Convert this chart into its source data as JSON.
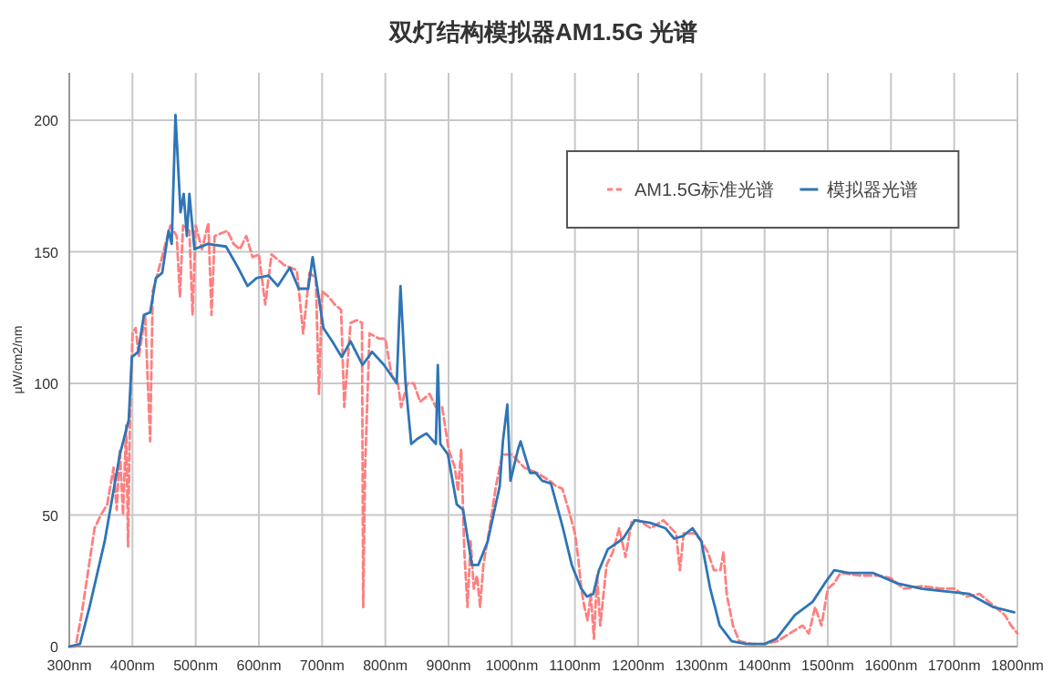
{
  "chart_data": {
    "type": "line",
    "title": "双灯结构模拟器AM1.5G 光谱",
    "ylabel": "μW/cm2/nm",
    "xlim": [
      300,
      1800
    ],
    "ylim": [
      0,
      218
    ],
    "xticks": [
      {
        "value": 300,
        "label": "300nm"
      },
      {
        "value": 400,
        "label": "400nm"
      },
      {
        "value": 500,
        "label": "500nm"
      },
      {
        "value": 600,
        "label": "600nm"
      },
      {
        "value": 700,
        "label": "700nm"
      },
      {
        "value": 800,
        "label": "800nm"
      },
      {
        "value": 900,
        "label": "900nm"
      },
      {
        "value": 1000,
        "label": "1000nm"
      },
      {
        "value": 1100,
        "label": "1100nm"
      },
      {
        "value": 1200,
        "label": "1200nm"
      },
      {
        "value": 1300,
        "label": "1300nm"
      },
      {
        "value": 1400,
        "label": "1400nm"
      },
      {
        "value": 1500,
        "label": "1500nm"
      },
      {
        "value": 1600,
        "label": "1600nm"
      },
      {
        "value": 1700,
        "label": "1700nm"
      },
      {
        "value": 1800,
        "label": "1800nm"
      }
    ],
    "yticks": [
      0,
      50,
      100,
      150,
      200
    ],
    "grid": true,
    "legend": "top right",
    "series": [
      {
        "name": "AM1.5G标准光谱",
        "color": "#ff7f7f",
        "line_style": "dashed",
        "x": [
          300,
          310,
          320,
          330,
          340,
          350,
          360,
          370,
          375,
          380,
          385,
          390,
          393,
          396,
          400,
          405,
          410,
          420,
          428,
          432,
          440,
          450,
          460,
          470,
          475,
          480,
          490,
          495,
          500,
          510,
          520,
          525,
          530,
          540,
          550,
          560,
          570,
          580,
          590,
          600,
          610,
          620,
          640,
          660,
          670,
          680,
          690,
          695,
          700,
          710,
          720,
          730,
          735,
          745,
          755,
          763,
          765,
          768,
          775,
          790,
          800,
          810,
          820,
          825,
          835,
          845,
          855,
          870,
          880,
          890,
          900,
          910,
          915,
          920,
          925,
          930,
          935,
          940,
          945,
          950,
          955,
          965,
          975,
          985,
          1000,
          1020,
          1040,
          1060,
          1070,
          1080,
          1090,
          1100,
          1105,
          1110,
          1115,
          1120,
          1125,
          1130,
          1135,
          1140,
          1150,
          1160,
          1170,
          1180,
          1190,
          1200,
          1220,
          1240,
          1260,
          1266,
          1272,
          1290,
          1300,
          1310,
          1320,
          1330,
          1335,
          1340,
          1350,
          1360,
          1380,
          1400,
          1420,
          1440,
          1460,
          1470,
          1480,
          1490,
          1500,
          1510,
          1520,
          1550,
          1580,
          1600,
          1620,
          1650,
          1680,
          1700,
          1720,
          1740,
          1760,
          1780,
          1790,
          1800
        ],
        "values": [
          0,
          0,
          13,
          29,
          45,
          50,
          54,
          68,
          52,
          75,
          50,
          84,
          38,
          86,
          119,
          121,
          110,
          126,
          78,
          135,
          142,
          151,
          160,
          156,
          133,
          160,
          158,
          126,
          160,
          151,
          161,
          126,
          156,
          157,
          158,
          153,
          151,
          156,
          148,
          149,
          130,
          149,
          145,
          143,
          119,
          142,
          140,
          96,
          135,
          133,
          130,
          128,
          91,
          123,
          124,
          123,
          15,
          68,
          119,
          117,
          117,
          103,
          100,
          91,
          100,
          100,
          93,
          96,
          91,
          91,
          75,
          68,
          59,
          75,
          36,
          15,
          40,
          22,
          27,
          15,
          31,
          45,
          61,
          73,
          73,
          68,
          66,
          63,
          61,
          60,
          52,
          43,
          34,
          22,
          15,
          10,
          20,
          3,
          27,
          8,
          31,
          36,
          45,
          34,
          48,
          48,
          45,
          48,
          43,
          29,
          43,
          43,
          40,
          36,
          29,
          29,
          36,
          20,
          8,
          2,
          1,
          1,
          2,
          5,
          8,
          5,
          15,
          8,
          22,
          24,
          28,
          27,
          27,
          26,
          22,
          23,
          22,
          22,
          19,
          20,
          16,
          12,
          8,
          5
        ]
      },
      {
        "name": "模拟器光谱",
        "color": "#2e75b6",
        "line_style": "solid",
        "x": [
          300,
          317,
          332,
          356,
          380,
          394,
          399,
          409,
          418,
          428,
          437,
          447,
          457,
          462,
          468,
          476,
          481,
          486,
          490,
          498,
          519,
          548,
          567,
          582,
          596,
          615,
          630,
          649,
          663,
          678,
          685,
          692,
          702,
          716,
          731,
          745,
          764,
          779,
          798,
          818,
          824,
          832,
          841,
          851,
          865,
          880,
          883,
          887,
          899,
          913,
          923,
          937,
          947,
          962,
          981,
          986,
          993,
          998,
          1010,
          1014,
          1029,
          1038,
          1048,
          1062,
          1081,
          1095,
          1110,
          1119,
          1129,
          1138,
          1152,
          1176,
          1195,
          1219,
          1243,
          1257,
          1271,
          1286,
          1300,
          1314,
          1329,
          1348,
          1371,
          1400,
          1419,
          1448,
          1476,
          1495,
          1510,
          1533,
          1571,
          1610,
          1648,
          1686,
          1724,
          1762,
          1795
        ],
        "values": [
          0,
          1,
          15,
          40,
          73,
          86,
          110,
          112,
          126,
          127,
          140,
          142,
          158,
          153,
          202,
          165,
          172,
          156,
          172,
          151,
          153,
          152,
          144,
          137,
          140,
          141,
          137,
          144,
          136,
          136,
          148,
          137,
          121,
          116,
          110,
          116,
          107,
          112,
          107,
          100,
          137,
          100,
          77,
          79,
          81,
          77,
          107,
          77,
          73,
          54,
          52,
          31,
          31,
          40,
          61,
          78,
          92,
          63,
          75,
          78,
          66,
          66,
          63,
          62,
          45,
          31,
          22,
          19,
          20,
          29,
          37,
          41,
          48,
          47,
          45,
          41,
          42,
          45,
          40,
          22,
          8,
          2,
          1,
          1,
          3,
          12,
          17,
          24,
          29,
          28,
          28,
          24,
          22,
          21,
          20,
          15,
          13
        ]
      }
    ]
  }
}
